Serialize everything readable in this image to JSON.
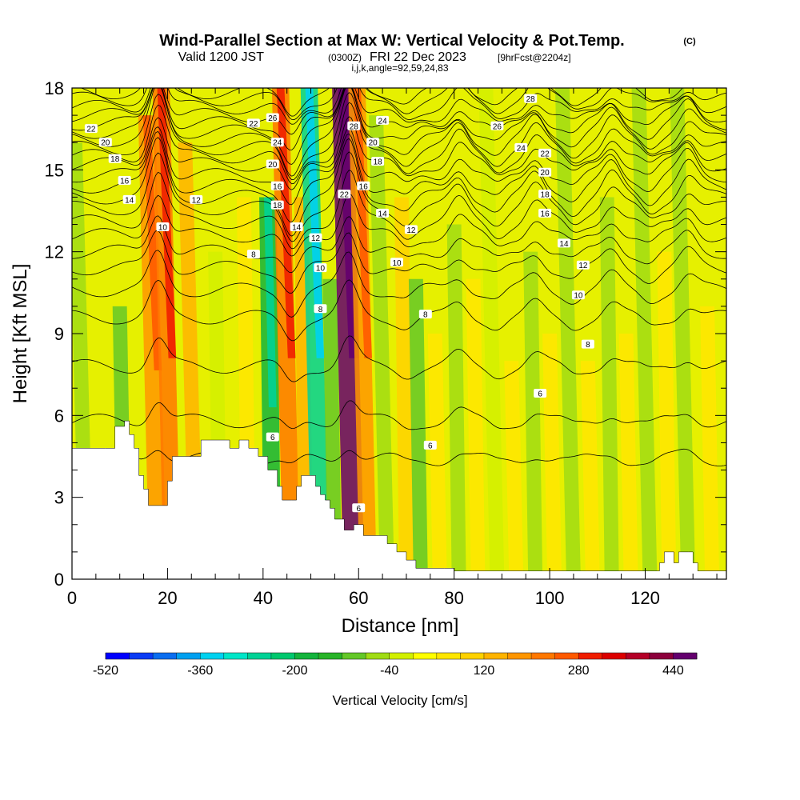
{
  "chart_data": {
    "type": "heatmap",
    "title": "Wind-Parallel Section at Max W: Vertical Velocity & Pot.Temp.",
    "title_mark": "(C)",
    "subtitle": {
      "valid": "Valid 1200 JST",
      "utc": "(0300Z)",
      "date": "FRI 22 Dec 2023",
      "fcst": "[9hrFcst@2204z]"
    },
    "subtitle2": "i,j,k,angle=92,59,24,83",
    "xlabel": "Distance [nm]",
    "ylabel": "Height [Kft MSL]",
    "xlim": [
      0,
      137
    ],
    "ylim": [
      0,
      18
    ],
    "x_ticks": [
      "0",
      "20",
      "40",
      "60",
      "80",
      "100",
      "120"
    ],
    "x_tick_values": [
      0,
      20,
      40,
      60,
      80,
      100,
      120
    ],
    "y_ticks": [
      "0",
      "3",
      "6",
      "9",
      "12",
      "15",
      "18"
    ],
    "y_tick_values": [
      0,
      3,
      6,
      9,
      12,
      15,
      18
    ],
    "colorbar": {
      "label": "Vertical Velocity [cm/s]",
      "tick_labels": [
        "-520",
        "-360",
        "-200",
        "-40",
        "120",
        "280",
        "440"
      ],
      "colors": [
        "#0000ff",
        "#0a3cf5",
        "#0a6ef0",
        "#00a0f0",
        "#00d2f0",
        "#00e6c8",
        "#00d296",
        "#00c86e",
        "#14b43c",
        "#28b428",
        "#64c828",
        "#a0dc14",
        "#d2f000",
        "#ffff00",
        "#ffe600",
        "#ffd200",
        "#ffb400",
        "#ff9600",
        "#ff7800",
        "#ff5a00",
        "#f01e00",
        "#dc0000",
        "#b40028",
        "#8c003c",
        "#64006e"
      ]
    },
    "terrain": [
      {
        "x": 0,
        "h": 4.8
      },
      {
        "x": 7,
        "h": 4.8
      },
      {
        "x": 9,
        "h": 5.6
      },
      {
        "x": 11,
        "h": 5.8
      },
      {
        "x": 12,
        "h": 5.3
      },
      {
        "x": 13,
        "h": 4.8
      },
      {
        "x": 14,
        "h": 3.8
      },
      {
        "x": 15,
        "h": 3.3
      },
      {
        "x": 16,
        "h": 2.7
      },
      {
        "x": 19,
        "h": 2.7
      },
      {
        "x": 20,
        "h": 3.6
      },
      {
        "x": 21,
        "h": 4.5
      },
      {
        "x": 26,
        "h": 4.5
      },
      {
        "x": 27,
        "h": 5.1
      },
      {
        "x": 32,
        "h": 5.1
      },
      {
        "x": 33,
        "h": 4.8
      },
      {
        "x": 35,
        "h": 5.1
      },
      {
        "x": 37,
        "h": 4.8
      },
      {
        "x": 39,
        "h": 4.5
      },
      {
        "x": 41,
        "h": 4.0
      },
      {
        "x": 43,
        "h": 3.4
      },
      {
        "x": 44,
        "h": 2.9
      },
      {
        "x": 46,
        "h": 2.9
      },
      {
        "x": 47,
        "h": 3.4
      },
      {
        "x": 48,
        "h": 3.8
      },
      {
        "x": 50,
        "h": 3.8
      },
      {
        "x": 51,
        "h": 3.4
      },
      {
        "x": 52,
        "h": 3.1
      },
      {
        "x": 53,
        "h": 2.9
      },
      {
        "x": 54,
        "h": 2.6
      },
      {
        "x": 55,
        "h": 2.2
      },
      {
        "x": 57,
        "h": 1.8
      },
      {
        "x": 59,
        "h": 2.0
      },
      {
        "x": 61,
        "h": 1.6
      },
      {
        "x": 64,
        "h": 1.6
      },
      {
        "x": 66,
        "h": 1.3
      },
      {
        "x": 68,
        "h": 1.0
      },
      {
        "x": 70,
        "h": 0.7
      },
      {
        "x": 72,
        "h": 0.4
      },
      {
        "x": 78,
        "h": 0.4
      },
      {
        "x": 80,
        "h": 0.3
      },
      {
        "x": 122,
        "h": 0.3
      },
      {
        "x": 123,
        "h": 0.6
      },
      {
        "x": 124,
        "h": 1.0
      },
      {
        "x": 125,
        "h": 1.0
      },
      {
        "x": 126,
        "h": 0.6
      },
      {
        "x": 127,
        "h": 1.0
      },
      {
        "x": 129,
        "h": 1.0
      },
      {
        "x": 130,
        "h": 0.6
      },
      {
        "x": 131,
        "h": 0.3
      },
      {
        "x": 137,
        "h": 0.3
      }
    ],
    "velocity_bands": [
      {
        "x": 3,
        "w": -60,
        "z_top": 16
      },
      {
        "x": 11,
        "w": -100,
        "z_top": 10
      },
      {
        "x": 18,
        "w": 160,
        "z_top": 17
      },
      {
        "x": 21,
        "w": 200,
        "z_top": 18
      },
      {
        "x": 26,
        "w": 120,
        "z_top": 16
      },
      {
        "x": 31,
        "w": -40,
        "z_top": 12
      },
      {
        "x": 37,
        "w": 60,
        "z_top": 14
      },
      {
        "x": 42,
        "w": -200,
        "z_top": 14
      },
      {
        "x": 46,
        "w": 200,
        "z_top": 18
      },
      {
        "x": 49,
        "w": 120,
        "z_top": 14
      },
      {
        "x": 52,
        "w": -280,
        "z_top": 18
      },
      {
        "x": 55,
        "w": -120,
        "z_top": 11
      },
      {
        "x": 59,
        "w": 440,
        "z_top": 18
      },
      {
        "x": 62,
        "w": 160,
        "z_top": 18
      },
      {
        "x": 66,
        "w": -80,
        "z_top": 17
      },
      {
        "x": 70,
        "w": 80,
        "z_top": 14
      },
      {
        "x": 73,
        "w": -100,
        "z_top": 11
      },
      {
        "x": 77,
        "w": 40,
        "z_top": 9
      },
      {
        "x": 81,
        "w": -60,
        "z_top": 13
      },
      {
        "x": 85,
        "w": 60,
        "z_top": 11
      },
      {
        "x": 89,
        "w": -40,
        "z_top": 18
      },
      {
        "x": 93,
        "w": 60,
        "z_top": 8
      },
      {
        "x": 97,
        "w": -80,
        "z_top": 12
      },
      {
        "x": 101,
        "w": 40,
        "z_top": 9
      },
      {
        "x": 105,
        "w": -60,
        "z_top": 18
      },
      {
        "x": 109,
        "w": 60,
        "z_top": 8
      },
      {
        "x": 113,
        "w": -60,
        "z_top": 14
      },
      {
        "x": 117,
        "w": 60,
        "z_top": 9
      },
      {
        "x": 121,
        "w": -60,
        "z_top": 18
      },
      {
        "x": 125,
        "w": 40,
        "z_top": 12
      },
      {
        "x": 129,
        "w": -60,
        "z_top": 18
      },
      {
        "x": 134,
        "w": 40,
        "z_top": 10
      }
    ],
    "contour_labels": [
      {
        "x": 4,
        "z": 16.5,
        "text": "22"
      },
      {
        "x": 7,
        "z": 16.0,
        "text": "20"
      },
      {
        "x": 9,
        "z": 15.4,
        "text": "18"
      },
      {
        "x": 11,
        "z": 14.6,
        "text": "16"
      },
      {
        "x": 12,
        "z": 13.9,
        "text": "14"
      },
      {
        "x": 19,
        "z": 12.9,
        "text": "10"
      },
      {
        "x": 26,
        "z": 13.9,
        "text": "12"
      },
      {
        "x": 38,
        "z": 16.7,
        "text": "22"
      },
      {
        "x": 42,
        "z": 16.9,
        "text": "26"
      },
      {
        "x": 43,
        "z": 16.0,
        "text": "24"
      },
      {
        "x": 42,
        "z": 15.2,
        "text": "20"
      },
      {
        "x": 43,
        "z": 14.4,
        "text": "16"
      },
      {
        "x": 43,
        "z": 13.7,
        "text": "18"
      },
      {
        "x": 38,
        "z": 11.9,
        "text": "8"
      },
      {
        "x": 47,
        "z": 12.9,
        "text": "14"
      },
      {
        "x": 51,
        "z": 12.5,
        "text": "12"
      },
      {
        "x": 52,
        "z": 11.4,
        "text": "10"
      },
      {
        "x": 52,
        "z": 9.9,
        "text": "8"
      },
      {
        "x": 59,
        "z": 16.6,
        "text": "28"
      },
      {
        "x": 65,
        "z": 16.8,
        "text": "24"
      },
      {
        "x": 63,
        "z": 16.0,
        "text": "20"
      },
      {
        "x": 64,
        "z": 15.3,
        "text": "18"
      },
      {
        "x": 61,
        "z": 14.4,
        "text": "16"
      },
      {
        "x": 57,
        "z": 14.1,
        "text": "22"
      },
      {
        "x": 65,
        "z": 13.4,
        "text": "14"
      },
      {
        "x": 71,
        "z": 12.8,
        "text": "12"
      },
      {
        "x": 68,
        "z": 11.6,
        "text": "10"
      },
      {
        "x": 74,
        "z": 9.7,
        "text": "8"
      },
      {
        "x": 60,
        "z": 2.6,
        "text": "6"
      },
      {
        "x": 42,
        "z": 5.2,
        "text": "6"
      },
      {
        "x": 75,
        "z": 4.9,
        "text": "6"
      },
      {
        "x": 96,
        "z": 17.6,
        "text": "28"
      },
      {
        "x": 89,
        "z": 16.6,
        "text": "26"
      },
      {
        "x": 94,
        "z": 15.8,
        "text": "24"
      },
      {
        "x": 99,
        "z": 15.6,
        "text": "22"
      },
      {
        "x": 99,
        "z": 14.9,
        "text": "20"
      },
      {
        "x": 99,
        "z": 14.1,
        "text": "18"
      },
      {
        "x": 99,
        "z": 13.4,
        "text": "16"
      },
      {
        "x": 103,
        "z": 12.3,
        "text": "14"
      },
      {
        "x": 107,
        "z": 11.5,
        "text": "12"
      },
      {
        "x": 106,
        "z": 10.4,
        "text": "10"
      },
      {
        "x": 108,
        "z": 8.6,
        "text": "8"
      },
      {
        "x": 98,
        "z": 6.8,
        "text": "6"
      }
    ],
    "isentropes": [
      {
        "level": 5,
        "base": 4.4,
        "amp": 0.4
      },
      {
        "level": 6,
        "base": 5.8,
        "amp": 0.6
      },
      {
        "level": 7,
        "base": 7.8,
        "amp": 0.7
      },
      {
        "level": 8,
        "base": 9.6,
        "amp": 0.8
      },
      {
        "level": 9,
        "base": 10.6,
        "amp": 0.9
      },
      {
        "level": 10,
        "base": 11.4,
        "amp": 1.0
      },
      {
        "level": 11,
        "base": 12.0,
        "amp": 1.1
      },
      {
        "level": 12,
        "base": 12.6,
        "amp": 1.2
      },
      {
        "level": 13,
        "base": 13.1,
        "amp": 1.3
      },
      {
        "level": 14,
        "base": 13.6,
        "amp": 1.3
      },
      {
        "level": 15,
        "base": 14.0,
        "amp": 1.4
      },
      {
        "level": 16,
        "base": 14.4,
        "amp": 1.4
      },
      {
        "level": 17,
        "base": 14.8,
        "amp": 1.4
      },
      {
        "level": 18,
        "base": 15.2,
        "amp": 1.4
      },
      {
        "level": 19,
        "base": 15.5,
        "amp": 1.4
      },
      {
        "level": 20,
        "base": 15.8,
        "amp": 1.3
      },
      {
        "level": 21,
        "base": 16.1,
        "amp": 1.3
      },
      {
        "level": 22,
        "base": 16.4,
        "amp": 1.2
      },
      {
        "level": 23,
        "base": 16.7,
        "amp": 1.2
      },
      {
        "level": 24,
        "base": 17.0,
        "amp": 1.1
      },
      {
        "level": 25,
        "base": 17.3,
        "amp": 1.0
      },
      {
        "level": 26,
        "base": 17.6,
        "amp": 0.9
      },
      {
        "level": 27,
        "base": 17.85,
        "amp": 0.8
      }
    ]
  }
}
